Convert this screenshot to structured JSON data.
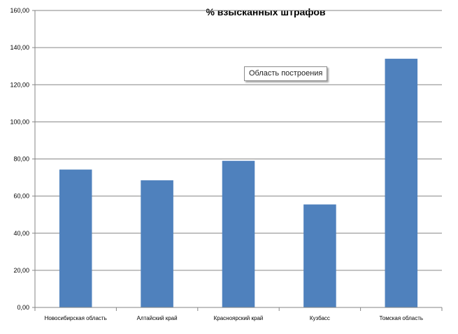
{
  "chart_data": {
    "type": "bar",
    "title": "% взысканных штрафов",
    "categories": [
      "Новосибирская область",
      "Алтайский край",
      "Красноярский край",
      "Кузбасс",
      "Томская область"
    ],
    "values": [
      74.3,
      68.5,
      79.0,
      55.5,
      134.0
    ],
    "ylim": [
      0,
      160
    ],
    "yticks": [
      "0,00",
      "20,00",
      "40,00",
      "60,00",
      "80,00",
      "100,00",
      "120,00",
      "140,00",
      "160,00"
    ],
    "grid": true,
    "bar_color": "#4f81bd"
  },
  "tooltip": {
    "text": "Область построения"
  }
}
